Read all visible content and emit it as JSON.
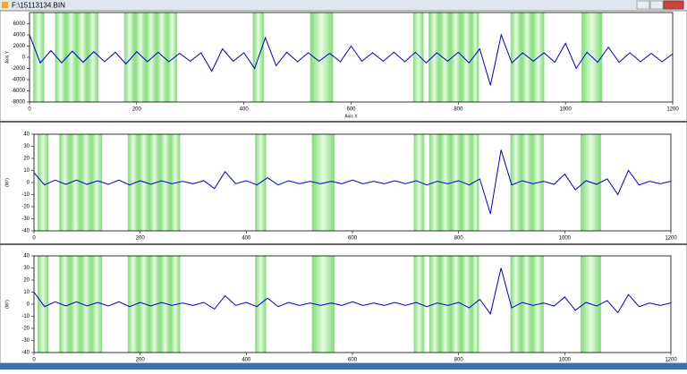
{
  "window": {
    "title": "F:\\15113134.BIN"
  },
  "chart_data": [
    {
      "type": "line",
      "ylabel": "Axis Y",
      "xlabel": "Axis X",
      "xlim": [
        0,
        1200
      ],
      "xticks": [
        0,
        200,
        400,
        600,
        800,
        1000,
        1200
      ],
      "ylim": [
        -8000,
        8000
      ],
      "yticks": [
        -8000,
        -6000,
        -4000,
        -2000,
        0,
        2000,
        4000,
        6000
      ],
      "bands": [
        [
          7,
          27
        ],
        [
          48,
          68
        ],
        [
          68,
          88
        ],
        [
          88,
          108
        ],
        [
          108,
          128
        ],
        [
          177,
          197
        ],
        [
          197,
          217
        ],
        [
          217,
          237
        ],
        [
          237,
          257
        ],
        [
          257,
          275
        ],
        [
          417,
          437
        ],
        [
          524,
          566
        ],
        [
          716,
          735
        ],
        [
          745,
          765
        ],
        [
          765,
          785
        ],
        [
          785,
          805
        ],
        [
          805,
          825
        ],
        [
          825,
          838
        ],
        [
          898,
          918
        ],
        [
          918,
          938
        ],
        [
          938,
          960
        ],
        [
          1030,
          1068
        ]
      ],
      "band_color": "#9be890",
      "x": [
        0,
        20,
        40,
        60,
        80,
        100,
        120,
        140,
        160,
        180,
        200,
        220,
        240,
        260,
        280,
        300,
        320,
        340,
        360,
        380,
        400,
        420,
        440,
        460,
        480,
        500,
        520,
        540,
        560,
        580,
        600,
        620,
        640,
        660,
        680,
        700,
        720,
        740,
        760,
        780,
        800,
        820,
        840,
        860,
        880,
        900,
        920,
        940,
        960,
        980,
        1000,
        1020,
        1040,
        1060,
        1080,
        1100,
        1120,
        1140,
        1160,
        1180,
        1200
      ],
      "series": [
        {
          "color": "#0000cc",
          "values": [
            4000,
            -1000,
            1200,
            -1000,
            1100,
            -900,
            1000,
            -800,
            900,
            -1200,
            1000,
            -800,
            900,
            -800,
            700,
            -700,
            800,
            -2500,
            1500,
            -700,
            800,
            -2000,
            3500,
            -1500,
            900,
            -800,
            800,
            -700,
            700,
            -800,
            2000,
            -700,
            800,
            -700,
            900,
            -800,
            900,
            -1000,
            800,
            -700,
            900,
            -1000,
            1500,
            -5000,
            4000,
            -1000,
            800,
            -700,
            800,
            -900,
            2500,
            -2000,
            900,
            -900,
            1800,
            -900,
            800,
            -800,
            700,
            -800,
            600
          ]
        }
      ]
    },
    {
      "type": "line",
      "ylabel": "(W²)",
      "xlim": [
        0,
        1200
      ],
      "xticks": [
        0,
        200,
        400,
        600,
        800,
        1000,
        1200
      ],
      "ylim": [
        -40,
        40
      ],
      "yticks": [
        -40,
        -30,
        -20,
        -10,
        0,
        10,
        20,
        30,
        40
      ],
      "bands": [
        [
          7,
          27
        ],
        [
          48,
          68
        ],
        [
          68,
          88
        ],
        [
          88,
          108
        ],
        [
          108,
          128
        ],
        [
          177,
          197
        ],
        [
          197,
          217
        ],
        [
          217,
          237
        ],
        [
          237,
          257
        ],
        [
          257,
          275
        ],
        [
          417,
          437
        ],
        [
          524,
          566
        ],
        [
          716,
          735
        ],
        [
          745,
          765
        ],
        [
          765,
          785
        ],
        [
          785,
          805
        ],
        [
          805,
          825
        ],
        [
          825,
          838
        ],
        [
          898,
          918
        ],
        [
          918,
          938
        ],
        [
          938,
          960
        ],
        [
          1030,
          1068
        ]
      ],
      "band_color": "#9be890",
      "x": [
        0,
        20,
        40,
        60,
        80,
        100,
        120,
        140,
        160,
        180,
        200,
        220,
        240,
        260,
        280,
        300,
        320,
        340,
        360,
        380,
        400,
        420,
        440,
        460,
        480,
        500,
        520,
        540,
        560,
        580,
        600,
        620,
        640,
        660,
        680,
        700,
        720,
        740,
        760,
        780,
        800,
        820,
        840,
        860,
        880,
        900,
        920,
        940,
        960,
        980,
        1000,
        1020,
        1040,
        1060,
        1080,
        1100,
        1120,
        1140,
        1160,
        1180,
        1200
      ],
      "series": [
        {
          "color": "#0000cc",
          "values": [
            8,
            -2,
            2,
            -1.5,
            2,
            -1.5,
            1.5,
            -1.5,
            2,
            -2,
            1.5,
            -1.5,
            1.5,
            -1,
            1,
            -1,
            1.5,
            -5,
            9,
            -1,
            1.5,
            -2,
            4,
            -2,
            1.5,
            -1,
            1,
            -1,
            1,
            -1,
            2,
            -1,
            1,
            -1,
            1.5,
            -1,
            1.5,
            -2,
            1,
            -1,
            1.5,
            -2,
            3,
            -26,
            27,
            -2,
            1.5,
            -1,
            1,
            -1.5,
            7,
            -6,
            1.5,
            -1.5,
            3,
            -10,
            10,
            -2,
            1,
            -1,
            1
          ]
        }
      ]
    },
    {
      "type": "line",
      "ylabel": "(W²)",
      "xlim": [
        0,
        1200
      ],
      "xticks": [
        0,
        200,
        400,
        600,
        800,
        1000,
        1200
      ],
      "ylim": [
        -40,
        40
      ],
      "yticks": [
        -40,
        -30,
        -20,
        -10,
        0,
        10,
        20,
        30,
        40
      ],
      "bands": [
        [
          7,
          27
        ],
        [
          48,
          68
        ],
        [
          68,
          88
        ],
        [
          88,
          108
        ],
        [
          108,
          128
        ],
        [
          177,
          197
        ],
        [
          197,
          217
        ],
        [
          217,
          237
        ],
        [
          237,
          257
        ],
        [
          257,
          275
        ],
        [
          417,
          437
        ],
        [
          524,
          566
        ],
        [
          716,
          735
        ],
        [
          745,
          765
        ],
        [
          765,
          785
        ],
        [
          785,
          805
        ],
        [
          805,
          825
        ],
        [
          825,
          838
        ],
        [
          898,
          918
        ],
        [
          918,
          938
        ],
        [
          938,
          960
        ],
        [
          1030,
          1068
        ]
      ],
      "band_color": "#9be890",
      "x": [
        0,
        20,
        40,
        60,
        80,
        100,
        120,
        140,
        160,
        180,
        200,
        220,
        240,
        260,
        280,
        300,
        320,
        340,
        360,
        380,
        400,
        420,
        440,
        460,
        480,
        500,
        520,
        540,
        560,
        580,
        600,
        620,
        640,
        660,
        680,
        700,
        720,
        740,
        760,
        780,
        800,
        820,
        840,
        860,
        880,
        900,
        920,
        940,
        960,
        980,
        1000,
        1020,
        1040,
        1060,
        1080,
        1100,
        1120,
        1140,
        1160,
        1180,
        1200
      ],
      "series": [
        {
          "color": "#0000cc",
          "values": [
            10,
            -2,
            2,
            -1.5,
            2,
            -1.5,
            1.5,
            -1.5,
            2,
            -2,
            1.5,
            -1.5,
            1.5,
            -1,
            1,
            -1,
            1.5,
            -4,
            7,
            -1,
            1.5,
            -2,
            5,
            -2,
            1.5,
            -1,
            1,
            -1,
            1,
            -1,
            2,
            -1,
            1,
            -1,
            1.5,
            -1,
            1.5,
            -2,
            1,
            -1,
            1.5,
            -3,
            4,
            -8,
            30,
            -3,
            1.5,
            -1,
            1,
            -1.5,
            6,
            -5,
            1.5,
            -1.5,
            3,
            -7,
            8,
            -2,
            1,
            -1,
            1
          ]
        }
      ]
    }
  ]
}
